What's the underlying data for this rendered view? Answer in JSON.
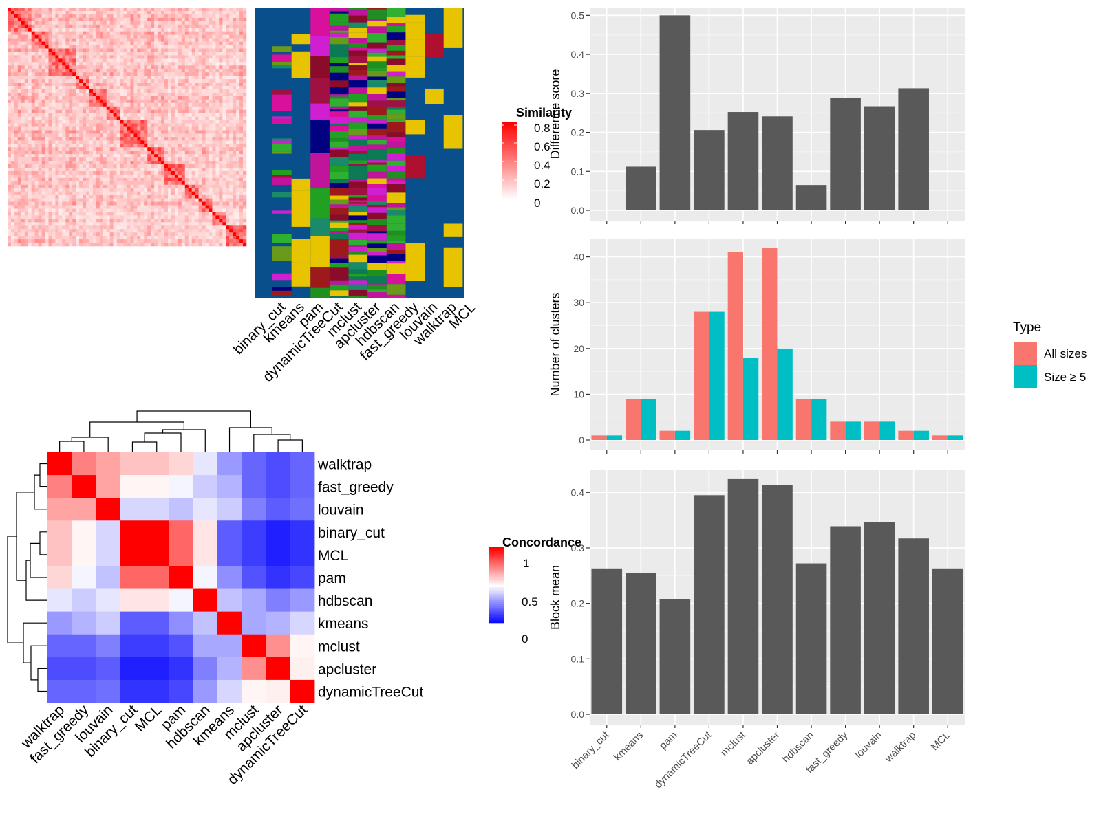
{
  "heatmap_panel": {
    "legend_title": "Similarity",
    "legend_ticks": [
      "0.8",
      "0.6",
      "0.4",
      "0.2",
      "0"
    ],
    "method_labels": [
      "binary_cut",
      "kmeans",
      "pam",
      "dynamicTreeCut",
      "mclust",
      "apcluster",
      "hdbscan",
      "fast_greedy",
      "louvain",
      "walktrap",
      "MCL"
    ]
  },
  "concordance_panel": {
    "legend_title": "Concordance",
    "legend_ticks": [
      "1",
      "0.5",
      "0"
    ],
    "row_labels": [
      "walktrap",
      "fast_greedy",
      "louvain",
      "binary_cut",
      "MCL",
      "pam",
      "hdbscan",
      "kmeans",
      "mclust",
      "apcluster",
      "dynamicTreeCut"
    ],
    "col_labels": [
      "walktrap",
      "fast_greedy",
      "louvain",
      "binary_cut",
      "MCL",
      "pam",
      "hdbscan",
      "kmeans",
      "mclust",
      "apcluster",
      "dynamicTreeCut"
    ]
  },
  "colors": {
    "red": "#ff0000",
    "blue": "#0000ff",
    "bar_dark": "#595959",
    "all_sizes": "#f8766d",
    "size_ge_5": "#00bfc4",
    "panel_bg": "#ebebeb",
    "cluster_bg": "#084f8c"
  },
  "chart_data": [
    {
      "type": "heatmap",
      "title": "",
      "rows": [
        "walktrap",
        "fast_greedy",
        "louvain",
        "binary_cut",
        "MCL",
        "pam",
        "hdbscan",
        "kmeans",
        "mclust",
        "apcluster",
        "dynamicTreeCut"
      ],
      "cols": [
        "walktrap",
        "fast_greedy",
        "louvain",
        "binary_cut",
        "MCL",
        "pam",
        "hdbscan",
        "kmeans",
        "mclust",
        "apcluster",
        "dynamicTreeCut"
      ],
      "values": [
        [
          1.0,
          0.75,
          0.68,
          0.62,
          0.62,
          0.58,
          0.45,
          0.3,
          0.2,
          0.15,
          0.2
        ],
        [
          0.75,
          1.0,
          0.68,
          0.52,
          0.52,
          0.48,
          0.4,
          0.35,
          0.2,
          0.15,
          0.2
        ],
        [
          0.68,
          0.68,
          1.0,
          0.42,
          0.42,
          0.38,
          0.45,
          0.4,
          0.25,
          0.18,
          0.22
        ],
        [
          0.62,
          0.52,
          0.42,
          1.0,
          1.0,
          0.8,
          0.55,
          0.18,
          0.12,
          0.06,
          0.1
        ],
        [
          0.62,
          0.52,
          0.42,
          1.0,
          1.0,
          0.8,
          0.55,
          0.18,
          0.12,
          0.06,
          0.1
        ],
        [
          0.58,
          0.48,
          0.38,
          0.8,
          0.8,
          1.0,
          0.48,
          0.28,
          0.16,
          0.1,
          0.14
        ],
        [
          0.45,
          0.4,
          0.45,
          0.55,
          0.55,
          0.48,
          1.0,
          0.38,
          0.33,
          0.25,
          0.3
        ],
        [
          0.3,
          0.35,
          0.4,
          0.18,
          0.18,
          0.28,
          0.38,
          1.0,
          0.33,
          0.35,
          0.42
        ],
        [
          0.2,
          0.2,
          0.25,
          0.12,
          0.12,
          0.16,
          0.33,
          0.33,
          1.0,
          0.72,
          0.52
        ],
        [
          0.15,
          0.15,
          0.18,
          0.06,
          0.06,
          0.1,
          0.25,
          0.35,
          0.72,
          1.0,
          0.53
        ],
        [
          0.2,
          0.2,
          0.22,
          0.1,
          0.1,
          0.14,
          0.3,
          0.42,
          0.52,
          0.53,
          1.0
        ]
      ]
    },
    {
      "type": "bar",
      "title": "",
      "xlabel": "",
      "ylabel": "Difference score",
      "categories": [
        "binary_cut",
        "kmeans",
        "pam",
        "dynamicTreeCut",
        "mclust",
        "apcluster",
        "hdbscan",
        "fast_greedy",
        "louvain",
        "walktrap",
        "MCL"
      ],
      "values": [
        0,
        0.112,
        0.5,
        0.206,
        0.252,
        0.241,
        0.065,
        0.289,
        0.267,
        0.313,
        0
      ],
      "ylim": [
        0,
        0.5
      ],
      "yticks": [
        "0.0",
        "0.1",
        "0.2",
        "0.3",
        "0.4",
        "0.5"
      ],
      "grid": true
    },
    {
      "type": "bar",
      "title": "",
      "xlabel": "",
      "ylabel": "Number of clusters",
      "categories": [
        "binary_cut",
        "kmeans",
        "pam",
        "dynamicTreeCut",
        "mclust",
        "apcluster",
        "hdbscan",
        "fast_greedy",
        "louvain",
        "walktrap",
        "MCL"
      ],
      "legend_title": "Type",
      "legend_position": "right",
      "series": [
        {
          "name": "All sizes",
          "values": [
            1,
            9,
            2,
            28,
            41,
            42,
            9,
            4,
            4,
            2,
            1
          ]
        },
        {
          "name": "Size ≥ 5",
          "values": [
            1,
            9,
            2,
            28,
            18,
            20,
            9,
            4,
            4,
            2,
            1
          ]
        }
      ],
      "ylim": [
        0,
        42
      ],
      "yticks": [
        "0",
        "10",
        "20",
        "30",
        "40"
      ],
      "grid": true
    },
    {
      "type": "bar",
      "title": "",
      "xlabel": "",
      "ylabel": "Block mean",
      "categories": [
        "binary_cut",
        "kmeans",
        "pam",
        "dynamicTreeCut",
        "mclust",
        "apcluster",
        "hdbscan",
        "fast_greedy",
        "louvain",
        "walktrap",
        "MCL"
      ],
      "values": [
        0.263,
        0.255,
        0.207,
        0.395,
        0.424,
        0.413,
        0.272,
        0.339,
        0.347,
        0.317,
        0.263
      ],
      "ylim": [
        0,
        0.42
      ],
      "yticks": [
        "0.0",
        "0.1",
        "0.2",
        "0.3",
        "0.4"
      ],
      "grid": true
    }
  ]
}
